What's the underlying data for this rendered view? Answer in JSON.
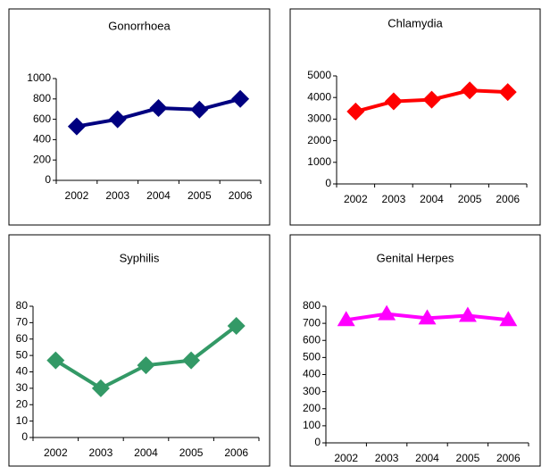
{
  "chart_data": [
    {
      "type": "line",
      "title": "Gonorrhoea",
      "categories": [
        "2002",
        "2003",
        "2004",
        "2005",
        "2006"
      ],
      "series": [
        {
          "name": "Gonorrhoea",
          "color": "#000080",
          "marker": "diamond",
          "values": [
            530,
            600,
            710,
            695,
            800
          ]
        }
      ],
      "ylim": [
        0,
        1000
      ],
      "yticks": [
        0,
        200,
        400,
        600,
        800,
        1000
      ]
    },
    {
      "type": "line",
      "title": "Chlamydia",
      "categories": [
        "2002",
        "2003",
        "2004",
        "2005",
        "2006"
      ],
      "series": [
        {
          "name": "Chlamydia",
          "color": "#ff0000",
          "marker": "diamond",
          "values": [
            3350,
            3820,
            3900,
            4330,
            4250
          ]
        }
      ],
      "ylim": [
        0,
        5000
      ],
      "yticks": [
        0,
        1000,
        2000,
        3000,
        4000,
        5000
      ]
    },
    {
      "type": "line",
      "title": "Syphilis",
      "categories": [
        "2002",
        "2003",
        "2004",
        "2005",
        "2006"
      ],
      "series": [
        {
          "name": "Syphilis",
          "color": "#339966",
          "marker": "diamond",
          "values": [
            47,
            30,
            44,
            47,
            68
          ]
        }
      ],
      "ylim": [
        0,
        80
      ],
      "yticks": [
        0,
        10,
        20,
        30,
        40,
        50,
        60,
        70,
        80
      ]
    },
    {
      "type": "line",
      "title": "Genital Herpes",
      "categories": [
        "2002",
        "2003",
        "2004",
        "2005",
        "2006"
      ],
      "series": [
        {
          "name": "Genital Herpes",
          "color": "#ff00ff",
          "marker": "triangle",
          "values": [
            720,
            755,
            730,
            745,
            720
          ]
        }
      ],
      "ylim": [
        0,
        800
      ],
      "yticks": [
        0,
        100,
        200,
        300,
        400,
        500,
        600,
        700,
        800
      ]
    }
  ]
}
